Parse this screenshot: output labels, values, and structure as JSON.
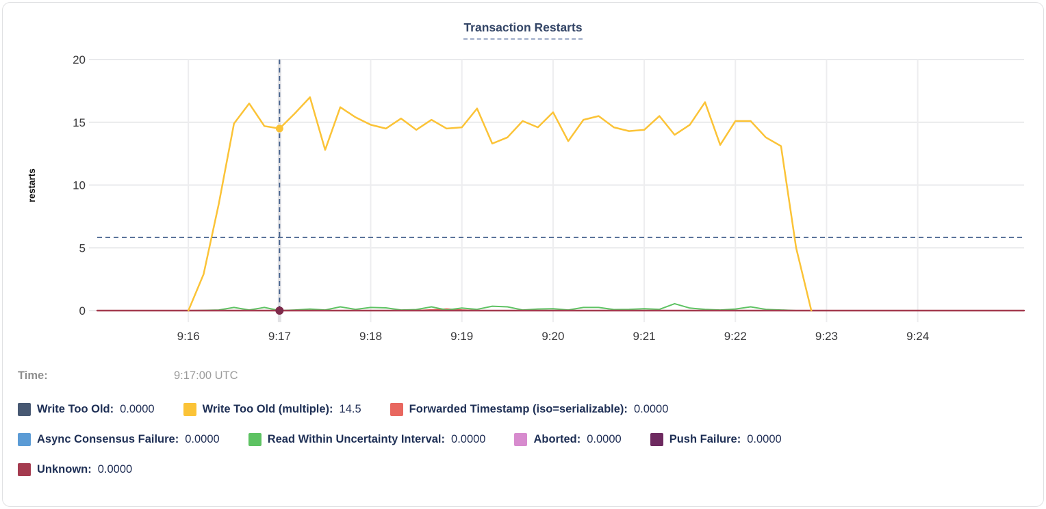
{
  "title": "Transaction Restarts",
  "tooltip": {
    "time_label": "Time:",
    "time_value": "9:17:00 UTC"
  },
  "legend": {
    "rows": [
      [
        {
          "name": "write-too-old",
          "label": "Write Too Old:",
          "value": "0.0000",
          "color": "#475872"
        },
        {
          "name": "write-too-old-multiple",
          "label": "Write Too Old (multiple):",
          "value": "14.5",
          "color": "#FBC337"
        },
        {
          "name": "forwarded-timestamp",
          "label": "Forwarded Timestamp (iso=serializable):",
          "value": "0.0000",
          "color": "#E8675F"
        }
      ],
      [
        {
          "name": "async-consensus-failure",
          "label": "Async Consensus Failure:",
          "value": "0.0000",
          "color": "#5B9BD5"
        },
        {
          "name": "read-within-uncertainty-interval",
          "label": "Read Within Uncertainty Interval:",
          "value": "0.0000",
          "color": "#5DC262"
        },
        {
          "name": "aborted",
          "label": "Aborted:",
          "value": "0.0000",
          "color": "#D78BCE"
        },
        {
          "name": "push-failure",
          "label": "Push Failure:",
          "value": "0.0000",
          "color": "#6E2A60"
        }
      ],
      [
        {
          "name": "unknown",
          "label": "Unknown:",
          "value": "0.0000",
          "color": "#A43B4F"
        }
      ]
    ]
  },
  "chart_data": {
    "type": "line",
    "title": "Transaction Restarts",
    "ylabel": "restarts",
    "xlabel": "",
    "ylim": [
      0,
      20
    ],
    "grid": true,
    "legend_position": "bottom",
    "x_domain": [
      "9:15:00",
      "9:25:10"
    ],
    "x_domain_sec": [
      0,
      610
    ],
    "yticks": [
      {
        "value": 0,
        "label": "0"
      },
      {
        "value": 5,
        "label": "5"
      },
      {
        "value": 10,
        "label": "10"
      },
      {
        "value": 15,
        "label": "15"
      },
      {
        "value": 20,
        "label": "20"
      }
    ],
    "xticks": [
      {
        "t_sec": 60,
        "label": "9:16"
      },
      {
        "t_sec": 120,
        "label": "9:17"
      },
      {
        "t_sec": 180,
        "label": "9:18"
      },
      {
        "t_sec": 240,
        "label": "9:19"
      },
      {
        "t_sec": 300,
        "label": "9:20"
      },
      {
        "t_sec": 360,
        "label": "9:21"
      },
      {
        "t_sec": 420,
        "label": "9:22"
      },
      {
        "t_sec": 480,
        "label": "9:23"
      },
      {
        "t_sec": 540,
        "label": "9:24"
      }
    ],
    "hover": {
      "time": "9:17:00 UTC",
      "t_sec": 120,
      "hline_value": 5.83,
      "points": [
        {
          "series": "Write Too Old (multiple)",
          "value": 14.5,
          "color": "#FBC337",
          "radius": 5.5
        },
        {
          "series": "zero-baseline",
          "value": 0,
          "color": "#7E2B4B",
          "radius": 6
        }
      ]
    },
    "series": [
      {
        "name": "Forwarded Timestamp (iso=serializable)",
        "color": "#E8675F",
        "width": 2,
        "t_start_sec": 60,
        "t_step_sec": 10,
        "values": [
          0,
          0,
          0,
          0,
          0,
          0,
          0,
          0,
          0,
          0,
          0,
          0,
          0,
          0,
          0,
          0,
          0.06,
          0.13,
          0.05,
          0,
          0,
          0,
          0,
          0,
          0,
          0,
          0,
          0,
          0,
          0,
          0,
          0,
          0,
          0,
          0,
          0,
          0,
          0,
          0,
          0,
          0
        ]
      },
      {
        "name": "Read Within Uncertainty Interval",
        "color": "#5DC262",
        "width": 2,
        "t_start_sec": 60,
        "t_step_sec": 10,
        "values": [
          0,
          0.02,
          0.05,
          0.25,
          0.05,
          0.25,
          0,
          0.05,
          0.12,
          0.05,
          0.3,
          0.1,
          0.25,
          0.22,
          0.05,
          0.08,
          0.3,
          0.05,
          0.2,
          0.1,
          0.35,
          0.3,
          0.05,
          0.12,
          0.15,
          0.05,
          0.25,
          0.25,
          0.08,
          0.1,
          0.15,
          0.1,
          0.55,
          0.2,
          0.1,
          0.05,
          0.12,
          0.3,
          0.1,
          0.05,
          0
        ]
      },
      {
        "name": "Unknown",
        "color": "#A43B4F",
        "width": 2.4,
        "t_start_sec": 0,
        "t_step_sec": 610,
        "values": [
          0,
          0
        ]
      },
      {
        "name": "Write Too Old (multiple)",
        "color": "#FBC337",
        "width": 2.5,
        "t_start_sec": 60,
        "t_step_sec": 10,
        "values": [
          0,
          2.9,
          8.5,
          14.9,
          16.5,
          14.7,
          14.5,
          15.7,
          17.0,
          12.8,
          16.2,
          15.4,
          14.8,
          14.5,
          15.3,
          14.4,
          15.2,
          14.5,
          14.6,
          16.1,
          13.3,
          13.8,
          15.1,
          14.6,
          15.8,
          13.5,
          15.2,
          15.5,
          14.6,
          14.3,
          14.4,
          15.5,
          14.0,
          14.8,
          16.6,
          13.2,
          15.1,
          15.1,
          13.8,
          13.1,
          5.0,
          0
        ]
      }
    ]
  }
}
